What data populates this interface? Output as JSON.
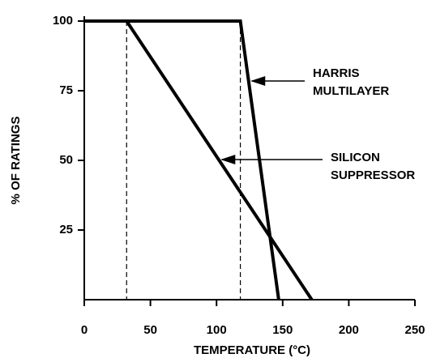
{
  "chart_data": {
    "type": "line",
    "xlabel": "TEMPERATURE (°C)",
    "ylabel": "% OF RATINGS",
    "xlim": [
      0,
      250
    ],
    "xticks": [
      0,
      50,
      100,
      150,
      200,
      250
    ],
    "ylim": [
      0,
      100
    ],
    "yticks": [
      25,
      50,
      75,
      100
    ],
    "grid": false,
    "series": [
      {
        "name": "HARRIS MULTILAYER",
        "color": "#000000",
        "x": [
          0,
          118,
          147
        ],
        "values": [
          100,
          100,
          0
        ]
      },
      {
        "name": "SILICON SUPPRESSOR",
        "color": "#000000",
        "x": [
          0,
          32,
          172
        ],
        "values": [
          100,
          100,
          0
        ]
      }
    ]
  }
}
